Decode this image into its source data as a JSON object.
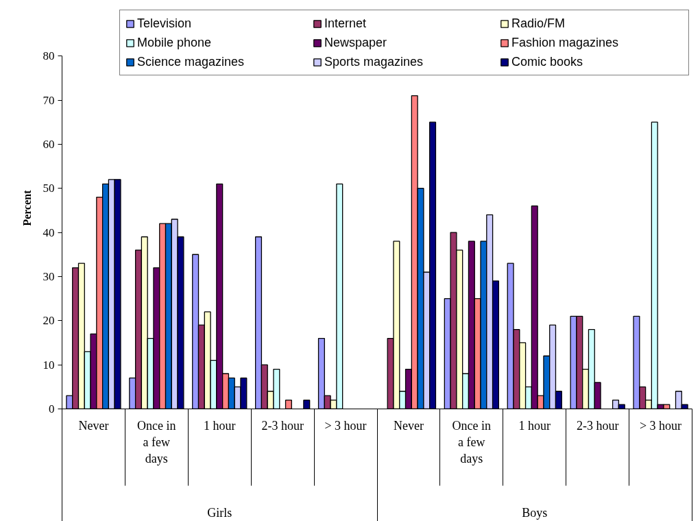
{
  "chart_data": {
    "type": "bar",
    "ylabel": "Percent",
    "categories": [
      "Never",
      "Once in a few days",
      "1 hour",
      "2-3 hour",
      "> 3 hour",
      "Never",
      "Once in a few days",
      "1 hour",
      "2-3 hour",
      "> 3 hour"
    ],
    "annotations": [
      "Girls",
      "Boys"
    ],
    "series": [
      {
        "name": "Television",
        "color": "#9999ff",
        "values": [
          3,
          7,
          35,
          39,
          16,
          null,
          25,
          33,
          21,
          21
        ]
      },
      {
        "name": "Internet",
        "color": "#993366",
        "values": [
          32,
          36,
          19,
          10,
          3,
          16,
          40,
          18,
          21,
          5
        ]
      },
      {
        "name": "Radio/FM",
        "color": "#ffffcc",
        "values": [
          33,
          39,
          22,
          4,
          2,
          38,
          36,
          15,
          9,
          2
        ]
      },
      {
        "name": "Mobile phone",
        "color": "#ccffff",
        "values": [
          13,
          16,
          11,
          9,
          51,
          4,
          8,
          5,
          18,
          65
        ]
      },
      {
        "name": "Newspaper",
        "color": "#660066",
        "values": [
          17,
          32,
          51,
          null,
          null,
          9,
          38,
          46,
          6,
          1
        ]
      },
      {
        "name": "Fashion magazines",
        "color": "#ff8080",
        "values": [
          48,
          42,
          8,
          2,
          null,
          71,
          25,
          3,
          null,
          1
        ]
      },
      {
        "name": "Science magazines",
        "color": "#0066cc",
        "values": [
          51,
          42,
          7,
          null,
          null,
          50,
          38,
          12,
          null,
          null
        ]
      },
      {
        "name": "Sports magazines",
        "color": "#ccccff",
        "values": [
          52,
          43,
          5,
          null,
          null,
          31,
          44,
          19,
          2,
          4
        ]
      },
      {
        "name": "Comic books",
        "color": "#000080",
        "values": [
          52,
          39,
          7,
          2,
          null,
          65,
          29,
          4,
          1,
          1
        ]
      }
    ],
    "ylim": [
      0,
      80
    ],
    "yticks": [
      0,
      10,
      20,
      30,
      40,
      50,
      60,
      70,
      80
    ],
    "legend": "top right"
  }
}
